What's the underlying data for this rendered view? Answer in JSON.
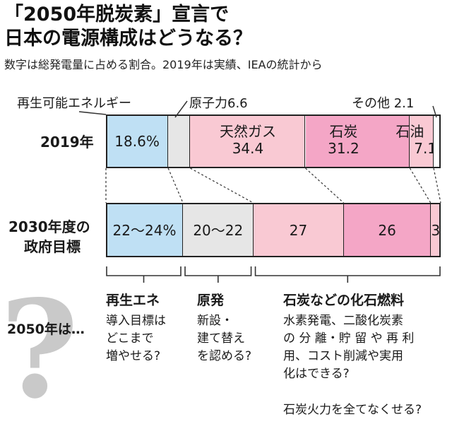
{
  "title_line1": "「2050年脱炭素」宣言で",
  "title_line2": "日本の電源構成はどうなる？",
  "subtitle": "数字は総発電量に占める割合。2019年は実績、IEAの統計から",
  "callouts": {
    "renewable": "再生可能エネルギー",
    "nuclear": "原子力",
    "nuclear_value": "6.6",
    "other": "その他",
    "other_value": "2.1"
  },
  "row_labels": {
    "r2019": "2019年",
    "r2030_line1": "2030年度の",
    "r2030_line2": "政府目標"
  },
  "chart_data": {
    "type": "bar",
    "orientation": "horizontal-stacked",
    "categories": [
      "2019年",
      "2030年度の政府目標"
    ],
    "bars": [
      {
        "label": "2019年",
        "segments": [
          {
            "name": "再生可能エネルギー",
            "value": 18.6,
            "text": "18.6%",
            "color": "#bfe0f4"
          },
          {
            "name": "原子力",
            "value": 6.6,
            "text": "",
            "color": "#e6e6e6"
          },
          {
            "name": "天然ガス",
            "value": 34.4,
            "text": "34.4",
            "color": "#f9c9d3"
          },
          {
            "name": "石炭",
            "value": 31.2,
            "text": "31.2",
            "color": "#f4a6c6"
          },
          {
            "name": "石油",
            "value": 7.1,
            "text": "7.1",
            "color": "#f9c9d3"
          },
          {
            "name": "その他",
            "value": 2.1,
            "text": "",
            "color": "#ffffff"
          }
        ]
      },
      {
        "label": "2030年度の政府目標",
        "segments": [
          {
            "name": "再生可能エネルギー",
            "value": 23,
            "text": "22〜24%",
            "color": "#bfe0f4"
          },
          {
            "name": "原子力",
            "value": 21,
            "text": "20〜22",
            "color": "#e6e6e6"
          },
          {
            "name": "天然ガス",
            "value": 27,
            "text": "27",
            "color": "#f9c9d3"
          },
          {
            "name": "石炭",
            "value": 26,
            "text": "26",
            "color": "#f4a6c6"
          },
          {
            "name": "石油",
            "value": 3,
            "text": "3",
            "color": "#f9c9d3"
          }
        ]
      }
    ],
    "segment_names_2019_inline": [
      "天然ガス",
      "石炭",
      "石油"
    ]
  },
  "future": {
    "row_label": "2050年は…",
    "renewable_head": "再生エネ",
    "renewable_body": [
      "導入目標は",
      "どこまで",
      "増やせる?"
    ],
    "nuclear_head": "原発",
    "nuclear_body": [
      "新設・",
      "建て替え",
      "を認める?"
    ],
    "fossil_head": "石炭などの化石燃料",
    "fossil_body": [
      "水素発電、二酸化炭素",
      "の 分 離・貯 留 や 再 利",
      "用、コスト削減や実用",
      "化はできる?"
    ],
    "fossil_extra": "石炭火力を全てなくせる?"
  }
}
